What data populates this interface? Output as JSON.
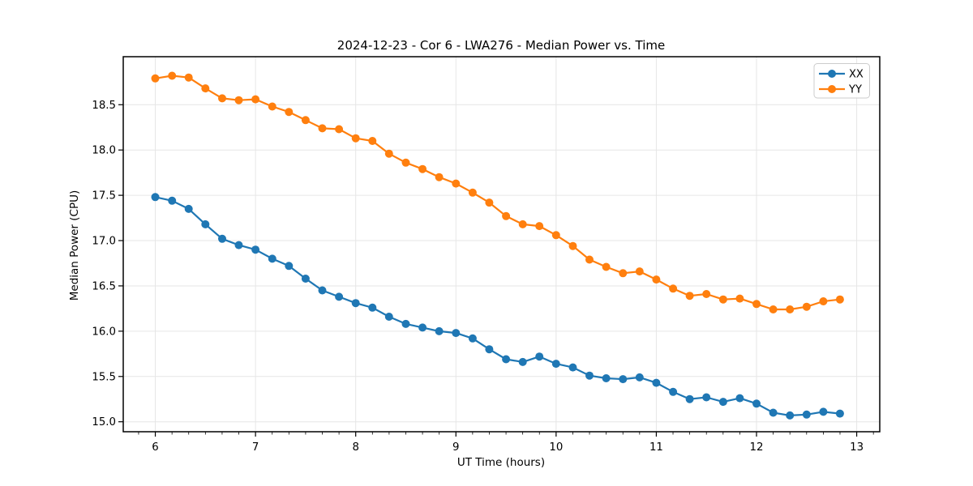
{
  "chart_data": {
    "type": "line",
    "title": "2024-12-23 - Cor 6 - LWA276 - Median Power vs. Time",
    "xlabel": "UT Time (hours)",
    "ylabel": "Median Power (CPU)",
    "xlim": [
      5.68,
      13.23
    ],
    "ylim": [
      14.89,
      19.03
    ],
    "xtick_values": [
      6,
      7,
      8,
      9,
      10,
      11,
      12,
      13
    ],
    "xtick_labels": [
      "6",
      "7",
      "8",
      "9",
      "10",
      "11",
      "12",
      "13"
    ],
    "ytick_values": [
      15.0,
      15.5,
      16.0,
      16.5,
      17.0,
      17.5,
      18.0,
      18.5
    ],
    "ytick_labels": [
      "15.0",
      "15.5",
      "16.0",
      "16.5",
      "17.0",
      "17.5",
      "18.0",
      "18.5"
    ],
    "x_minor_tick_step_hours": 0.1667,
    "grid": true,
    "grid_color": "#e6e6e6",
    "legend_position": "upper right",
    "x": [
      6.0,
      6.167,
      6.333,
      6.5,
      6.667,
      6.833,
      7.0,
      7.167,
      7.333,
      7.5,
      7.667,
      7.833,
      8.0,
      8.167,
      8.333,
      8.5,
      8.667,
      8.833,
      9.0,
      9.167,
      9.333,
      9.5,
      9.667,
      9.833,
      10.0,
      10.167,
      10.333,
      10.5,
      10.667,
      10.833,
      11.0,
      11.167,
      11.333,
      11.5,
      11.667,
      11.833,
      12.0,
      12.167,
      12.333,
      12.5,
      12.667,
      12.833
    ],
    "series": [
      {
        "name": "XX",
        "color": "#1f77b4",
        "values": [
          17.48,
          17.44,
          17.35,
          17.18,
          17.02,
          16.95,
          16.9,
          16.8,
          16.72,
          16.58,
          16.45,
          16.38,
          16.31,
          16.26,
          16.16,
          16.08,
          16.04,
          16.0,
          15.98,
          15.92,
          15.8,
          15.69,
          15.66,
          15.72,
          15.64,
          15.6,
          15.51,
          15.48,
          15.47,
          15.49,
          15.43,
          15.33,
          15.25,
          15.27,
          15.22,
          15.26,
          15.2,
          15.1,
          15.07,
          15.08,
          15.11,
          15.09
        ]
      },
      {
        "name": "YY",
        "color": "#ff7f0e",
        "values": [
          18.79,
          18.82,
          18.8,
          18.68,
          18.57,
          18.55,
          18.56,
          18.48,
          18.42,
          18.33,
          18.24,
          18.23,
          18.13,
          18.1,
          17.96,
          17.86,
          17.79,
          17.7,
          17.63,
          17.53,
          17.42,
          17.27,
          17.18,
          17.16,
          17.06,
          16.94,
          16.79,
          16.71,
          16.64,
          16.66,
          16.57,
          16.47,
          16.39,
          16.41,
          16.35,
          16.36,
          16.3,
          16.24,
          16.24,
          16.27,
          16.33,
          16.35
        ]
      }
    ]
  }
}
